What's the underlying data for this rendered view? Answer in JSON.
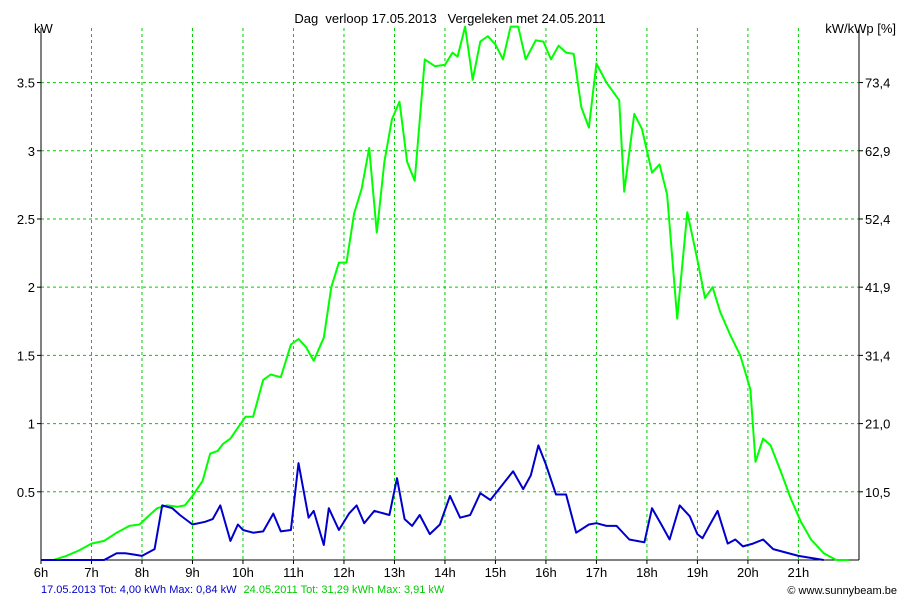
{
  "header": {
    "title": "Dag  verloop 17.05.2013   Vergeleken met 24.05.2011",
    "left_unit": "kW",
    "right_unit": "kW/kWp [%]"
  },
  "footer": {
    "series1_summary": "17.05.2013 Tot: 4,00 kWh Max: 0,84 kW",
    "series2_summary": "24.05.2011 Tot: 31,29 kWh Max: 3,91 kW",
    "credit": "© www.sunnybeam.be"
  },
  "chart_data": {
    "type": "line",
    "title": "Dag  verloop 17.05.2013   Vergeleken met 24.05.2011",
    "ylabel": "kW",
    "y2label": "kW/kWp [%]",
    "xlim": [
      6,
      22.2
    ],
    "ylim": [
      0,
      3.9
    ],
    "grid": true,
    "x_ticks": [
      6,
      7,
      8,
      9,
      10,
      11,
      12,
      13,
      14,
      15,
      16,
      17,
      18,
      19,
      20,
      21
    ],
    "x_tick_labels": [
      "6h",
      "7h",
      "8h",
      "9h",
      "10h",
      "11h",
      "12h",
      "13h",
      "14h",
      "15h",
      "16h",
      "17h",
      "18h",
      "19h",
      "20h",
      "21h"
    ],
    "y_ticks": [
      0.5,
      1,
      1.5,
      2,
      2.5,
      3,
      3.5
    ],
    "y_tick_labels": [
      "0.5",
      "1",
      "1.5",
      "2",
      "2.5",
      "3",
      "3.5"
    ],
    "y2_tick_labels": [
      "10,5",
      "21,0",
      "31,4",
      "41,9",
      "52,4",
      "62,9",
      "73,4"
    ],
    "colors": {
      "grid": "#00cc00",
      "axis": "#000000",
      "series1": "#0000cc",
      "series2": "#00ff00"
    },
    "series": [
      {
        "name": "17.05.2013",
        "color": "#0000cc",
        "x": [
          6.0,
          6.25,
          6.5,
          6.75,
          7.0,
          7.25,
          7.5,
          7.667,
          7.833,
          8.0,
          8.25,
          8.4,
          8.6,
          8.75,
          9.0,
          9.25,
          9.4,
          9.55,
          9.75,
          9.9,
          10.0,
          10.2,
          10.4,
          10.6,
          10.75,
          10.95,
          11.1,
          11.3,
          11.4,
          11.6,
          11.7,
          11.9,
          12.1,
          12.25,
          12.4,
          12.6,
          12.9,
          13.05,
          13.2,
          13.35,
          13.5,
          13.7,
          13.9,
          14.1,
          14.3,
          14.5,
          14.7,
          14.9,
          15.05,
          15.2,
          15.35,
          15.55,
          15.7,
          15.85,
          16.0,
          16.2,
          16.4,
          16.6,
          16.85,
          17.0,
          17.2,
          17.4,
          17.65,
          17.95,
          18.1,
          18.3,
          18.45,
          18.65,
          18.85,
          19.0,
          19.1,
          19.25,
          19.4,
          19.6,
          19.75,
          19.9,
          20.1,
          20.3,
          20.5,
          21.0,
          21.5
        ],
        "values": [
          0.0,
          0.0,
          0.0,
          0.0,
          0.0,
          0.0,
          0.05,
          0.05,
          0.04,
          0.03,
          0.08,
          0.4,
          0.38,
          0.33,
          0.26,
          0.28,
          0.3,
          0.4,
          0.14,
          0.26,
          0.22,
          0.2,
          0.21,
          0.34,
          0.21,
          0.22,
          0.71,
          0.31,
          0.36,
          0.11,
          0.38,
          0.22,
          0.34,
          0.4,
          0.27,
          0.36,
          0.33,
          0.6,
          0.3,
          0.25,
          0.33,
          0.19,
          0.26,
          0.47,
          0.31,
          0.33,
          0.49,
          0.44,
          0.51,
          0.58,
          0.65,
          0.52,
          0.62,
          0.84,
          0.7,
          0.48,
          0.48,
          0.2,
          0.26,
          0.27,
          0.25,
          0.25,
          0.15,
          0.13,
          0.38,
          0.25,
          0.15,
          0.4,
          0.32,
          0.19,
          0.16,
          0.26,
          0.36,
          0.12,
          0.15,
          0.1,
          0.12,
          0.15,
          0.08,
          0.03,
          0.0
        ]
      },
      {
        "name": "24.05.2011",
        "color": "#00ff00",
        "x": [
          6.0,
          6.25,
          6.5,
          6.75,
          7.0,
          7.25,
          7.5,
          7.75,
          7.95,
          8.15,
          8.3,
          8.5,
          8.7,
          8.85,
          9.0,
          9.2,
          9.35,
          9.5,
          9.6,
          9.75,
          9.9,
          10.05,
          10.2,
          10.4,
          10.55,
          10.75,
          10.95,
          11.1,
          11.25,
          11.4,
          11.6,
          11.75,
          11.9,
          12.05,
          12.2,
          12.35,
          12.5,
          12.65,
          12.8,
          12.95,
          13.1,
          13.25,
          13.4,
          13.6,
          13.8,
          14.0,
          14.15,
          14.25,
          14.4,
          14.55,
          14.7,
          14.85,
          15.0,
          15.15,
          15.3,
          15.45,
          15.6,
          15.8,
          15.95,
          16.1,
          16.25,
          16.4,
          16.55,
          16.7,
          16.85,
          17.0,
          17.2,
          17.45,
          17.55,
          17.75,
          17.9,
          18.1,
          18.25,
          18.4,
          18.6,
          18.8,
          19.0,
          19.15,
          19.3,
          19.45,
          19.65,
          19.85,
          20.05,
          20.15,
          20.3,
          20.45,
          20.65,
          20.85,
          21.05,
          21.25,
          21.5,
          21.75,
          22.0
        ],
        "values": [
          0.0,
          0.0,
          0.03,
          0.07,
          0.12,
          0.14,
          0.2,
          0.25,
          0.26,
          0.33,
          0.38,
          0.4,
          0.39,
          0.4,
          0.47,
          0.58,
          0.78,
          0.8,
          0.85,
          0.89,
          0.97,
          1.05,
          1.05,
          1.32,
          1.36,
          1.34,
          1.58,
          1.62,
          1.56,
          1.46,
          1.63,
          2.0,
          2.18,
          2.18,
          2.54,
          2.72,
          3.02,
          2.4,
          2.92,
          3.23,
          3.36,
          2.92,
          2.78,
          3.67,
          3.62,
          3.63,
          3.72,
          3.69,
          3.91,
          3.52,
          3.8,
          3.84,
          3.78,
          3.67,
          3.91,
          3.91,
          3.67,
          3.81,
          3.8,
          3.67,
          3.77,
          3.72,
          3.71,
          3.32,
          3.17,
          3.64,
          3.5,
          3.37,
          2.7,
          3.27,
          3.16,
          2.84,
          2.9,
          2.68,
          1.77,
          2.55,
          2.2,
          1.92,
          2.0,
          1.82,
          1.65,
          1.5,
          1.25,
          0.72,
          0.89,
          0.84,
          0.65,
          0.45,
          0.28,
          0.15,
          0.05,
          0.0,
          0.0
        ]
      }
    ]
  }
}
